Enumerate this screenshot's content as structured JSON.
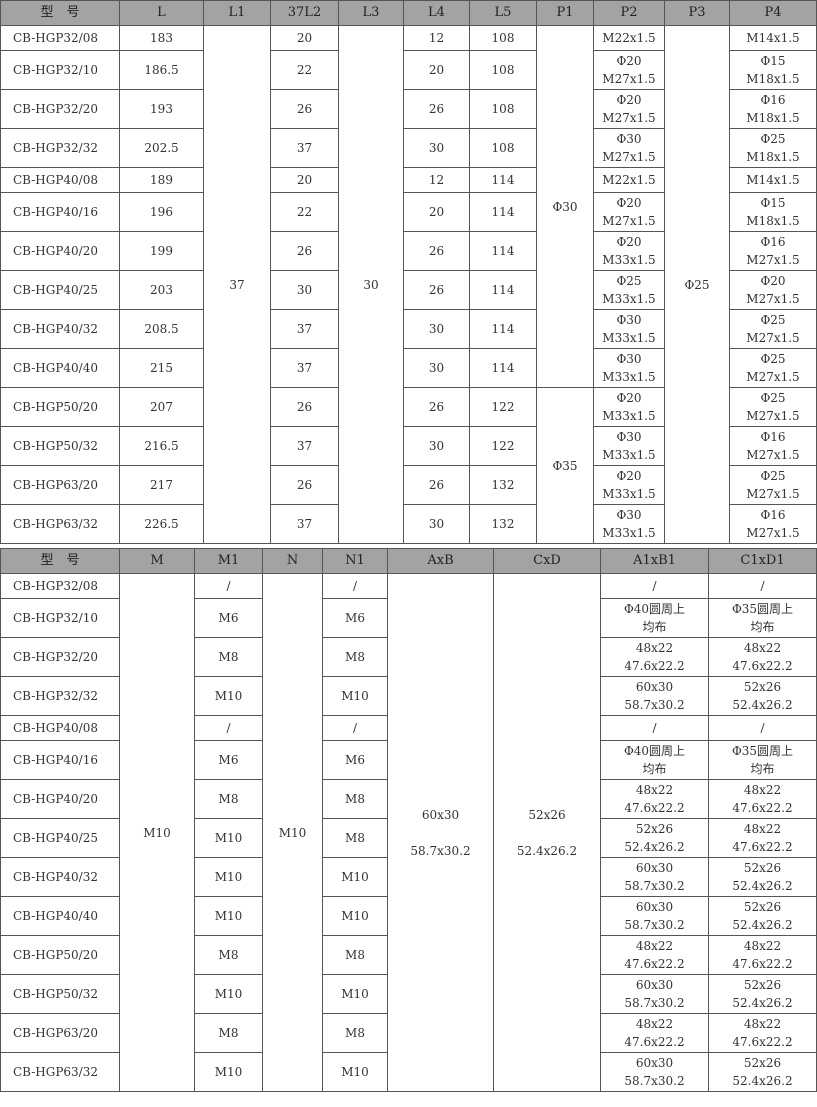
{
  "table1": {
    "headers": [
      "型　号",
      "L",
      "L1",
      "37L2",
      "L3",
      "L4",
      "L5",
      "P1",
      "P2",
      "P3",
      "P4"
    ],
    "rows": [
      {
        "model": "CB-HGP32/08",
        "L": "183",
        "L2": "20",
        "L4": "12",
        "L5": "108",
        "P2": "M22x1.5",
        "P4": "M14x1.5"
      },
      {
        "model": "CB-HGP32/10",
        "L": "186.5",
        "L2": "22",
        "L4": "20",
        "L5": "108",
        "P2": "Φ20\nM27x1.5",
        "P4": "Φ15\nM18x1.5"
      },
      {
        "model": "CB-HGP32/20",
        "L": "193",
        "L2": "26",
        "L4": "26",
        "L5": "108",
        "P2": "Φ20\nM27x1.5",
        "P4": "Φ16\nM18x1.5"
      },
      {
        "model": "CB-HGP32/32",
        "L": "202.5",
        "L2": "37",
        "L4": "30",
        "L5": "108",
        "P2": "Φ30\nM27x1.5",
        "P4": "Φ25\nM18x1.5"
      },
      {
        "model": "CB-HGP40/08",
        "L": "189",
        "L2": "20",
        "L4": "12",
        "L5": "114",
        "P2": "M22x1.5",
        "P4": "M14x1.5"
      },
      {
        "model": "CB-HGP40/16",
        "L": "196",
        "L2": "22",
        "L4": "20",
        "L5": "114",
        "P2": "Φ20\nM27x1.5",
        "P4": "Φ15\nM18x1.5"
      },
      {
        "model": "CB-HGP40/20",
        "L": "199",
        "L2": "26",
        "L4": "26",
        "L5": "114",
        "P2": "Φ20\nM33x1.5",
        "P4": "Φ16\nM27x1.5"
      },
      {
        "model": "CB-HGP40/25",
        "L": "203",
        "L2": "30",
        "L4": "26",
        "L5": "114",
        "P2": "Φ25\nM33x1.5",
        "P4": "Φ20\nM27x1.5"
      },
      {
        "model": "CB-HGP40/32",
        "L": "208.5",
        "L2": "37",
        "L4": "30",
        "L5": "114",
        "P2": "Φ30\nM33x1.5",
        "P4": "Φ25\nM27x1.5"
      },
      {
        "model": "CB-HGP40/40",
        "L": "215",
        "L2": "37",
        "L4": "30",
        "L5": "114",
        "P2": "Φ30\nM33x1.5",
        "P4": "Φ25\nM27x1.5"
      },
      {
        "model": "CB-HGP50/20",
        "L": "207",
        "L2": "26",
        "L4": "26",
        "L5": "122",
        "P2": "Φ20\nM33x1.5",
        "P4": "Φ25\nM27x1.5"
      },
      {
        "model": "CB-HGP50/32",
        "L": "216.5",
        "L2": "37",
        "L4": "30",
        "L5": "122",
        "P2": "Φ30\nM33x1.5",
        "P4": "Φ16\nM27x1.5"
      },
      {
        "model": "CB-HGP63/20",
        "L": "217",
        "L2": "26",
        "L4": "26",
        "L5": "132",
        "P2": "Φ20\nM33x1.5",
        "P4": "Φ25\nM27x1.5"
      },
      {
        "model": "CB-HGP63/32",
        "L": "226.5",
        "L2": "37",
        "L4": "30",
        "L5": "132",
        "P2": "Φ30\nM33x1.5",
        "P4": "Φ16\nM27x1.5"
      }
    ],
    "L1": "37",
    "L3": "30",
    "P1_a": "Φ30",
    "P1_b": "Φ35",
    "P3": "Φ25"
  },
  "table2": {
    "headers": [
      "型　号",
      "M",
      "M1",
      "N",
      "N1",
      "AxB",
      "CxD",
      "A1xB1",
      "C1xD1"
    ],
    "M": "M10",
    "N": "M10",
    "AxB": "60x30\n\n58.7x30.2",
    "CxD": "52x26\n\n52.4x26.2",
    "rows": [
      {
        "model": "CB-HGP32/08",
        "M1": "/",
        "N1": "/",
        "A1B1": "/",
        "C1D1": "/"
      },
      {
        "model": "CB-HGP32/10",
        "M1": "M6",
        "N1": "M6",
        "A1B1": "Φ40圆周上\n均布",
        "C1D1": "Φ35圆周上\n均布"
      },
      {
        "model": "CB-HGP32/20",
        "M1": "M8",
        "N1": "M8",
        "A1B1": "48x22\n47.6x22.2",
        "C1D1": "48x22\n47.6x22.2"
      },
      {
        "model": "CB-HGP32/32",
        "M1": "M10",
        "N1": "M10",
        "A1B1": "60x30\n58.7x30.2",
        "C1D1": "52x26\n52.4x26.2"
      },
      {
        "model": "CB-HGP40/08",
        "M1": "/",
        "N1": "/",
        "A1B1": "/",
        "C1D1": "/"
      },
      {
        "model": "CB-HGP40/16",
        "M1": "M6",
        "N1": "M6",
        "A1B1": "Φ40圆周上\n均布",
        "C1D1": "Φ35圆周上\n均布"
      },
      {
        "model": "CB-HGP40/20",
        "M1": "M8",
        "N1": "M8",
        "A1B1": "48x22\n47.6x22.2",
        "C1D1": "48x22\n47.6x22.2"
      },
      {
        "model": "CB-HGP40/25",
        "M1": "M10",
        "N1": "M8",
        "A1B1": "52x26\n52.4x26.2",
        "C1D1": "48x22\n47.6x22.2"
      },
      {
        "model": "CB-HGP40/32",
        "M1": "M10",
        "N1": "M10",
        "A1B1": "60x30\n58.7x30.2",
        "C1D1": "52x26\n52.4x26.2"
      },
      {
        "model": "CB-HGP40/40",
        "M1": "M10",
        "N1": "M10",
        "A1B1": "60x30\n58.7x30.2",
        "C1D1": "52x26\n52.4x26.2"
      },
      {
        "model": "CB-HGP50/20",
        "M1": "M8",
        "N1": "M8",
        "A1B1": "48x22\n47.6x22.2",
        "C1D1": "48x22\n47.6x22.2"
      },
      {
        "model": "CB-HGP50/32",
        "M1": "M10",
        "N1": "M10",
        "A1B1": "60x30\n58.7x30.2",
        "C1D1": "52x26\n52.4x26.2"
      },
      {
        "model": "CB-HGP63/20",
        "M1": "M8",
        "N1": "M8",
        "A1B1": "48x22\n47.6x22.2",
        "C1D1": "48x22\n47.6x22.2"
      },
      {
        "model": "CB-HGP63/32",
        "M1": "M10",
        "N1": "M10",
        "A1B1": "60x30\n58.7x30.2",
        "C1D1": "52x26\n52.4x26.2"
      }
    ]
  }
}
